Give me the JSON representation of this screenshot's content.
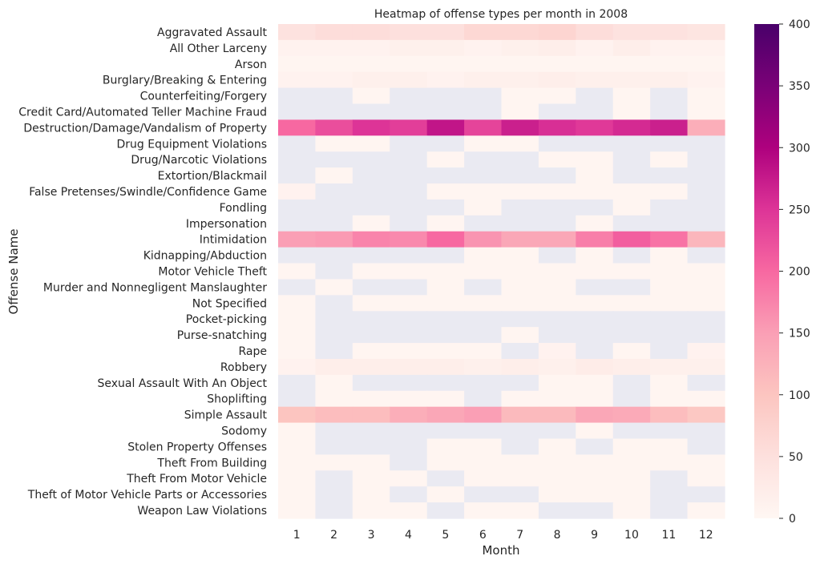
{
  "chart_data": {
    "type": "heatmap",
    "title": "Heatmap of offense types per month in 2008",
    "xlabel": "Month",
    "ylabel": "Offense Name",
    "x_categories": [
      "1",
      "2",
      "3",
      "4",
      "5",
      "6",
      "7",
      "8",
      "9",
      "10",
      "11",
      "12"
    ],
    "y_categories": [
      "Aggravated Assault",
      "All Other Larceny",
      "Arson",
      "Burglary/Breaking & Entering",
      "Counterfeiting/Forgery",
      "Credit Card/Automated Teller Machine Fraud",
      "Destruction/Damage/Vandalism of Property",
      "Drug Equipment Violations",
      "Drug/Narcotic Violations",
      "Extortion/Blackmail",
      "False Pretenses/Swindle/Confidence Game",
      "Fondling",
      "Impersonation",
      "Intimidation",
      "Kidnapping/Abduction",
      "Motor Vehicle Theft",
      "Murder and Nonnegligent Manslaughter",
      "Not Specified",
      "Pocket-picking",
      "Purse-snatching",
      "Rape",
      "Robbery",
      "Sexual Assault With An Object",
      "Shoplifting",
      "Simple Assault",
      "Sodomy",
      "Stolen Property Offenses",
      "Theft From Building",
      "Theft From Motor Vehicle",
      "Theft of Motor Vehicle Parts or Accessories",
      "Weapon Law Violations"
    ],
    "values": [
      [
        45,
        55,
        55,
        50,
        50,
        65,
        65,
        70,
        55,
        45,
        45,
        40
      ],
      [
        10,
        10,
        10,
        15,
        15,
        10,
        15,
        20,
        10,
        20,
        10,
        10
      ],
      [
        5,
        5,
        5,
        5,
        5,
        5,
        5,
        5,
        5,
        5,
        5,
        5
      ],
      [
        10,
        10,
        15,
        15,
        10,
        15,
        15,
        20,
        15,
        15,
        15,
        10
      ],
      [
        null,
        null,
        5,
        null,
        null,
        null,
        5,
        5,
        null,
        5,
        null,
        5
      ],
      [
        null,
        null,
        null,
        null,
        null,
        null,
        5,
        null,
        null,
        5,
        null,
        5
      ],
      [
        200,
        225,
        250,
        240,
        280,
        235,
        270,
        255,
        245,
        260,
        270,
        130
      ],
      [
        null,
        5,
        5,
        null,
        null,
        5,
        5,
        null,
        null,
        null,
        null,
        null
      ],
      [
        null,
        null,
        null,
        null,
        5,
        null,
        null,
        5,
        5,
        null,
        5,
        null
      ],
      [
        null,
        5,
        null,
        null,
        null,
        null,
        null,
        null,
        5,
        null,
        null,
        null
      ],
      [
        10,
        null,
        null,
        null,
        5,
        5,
        5,
        5,
        5,
        5,
        5,
        null
      ],
      [
        null,
        null,
        null,
        null,
        null,
        5,
        null,
        null,
        null,
        5,
        null,
        null
      ],
      [
        null,
        null,
        5,
        null,
        5,
        null,
        null,
        null,
        5,
        null,
        null,
        null
      ],
      [
        150,
        155,
        175,
        170,
        200,
        160,
        140,
        140,
        180,
        210,
        190,
        120
      ],
      [
        null,
        null,
        null,
        null,
        null,
        5,
        5,
        null,
        5,
        null,
        5,
        null
      ],
      [
        5,
        null,
        5,
        5,
        5,
        5,
        5,
        5,
        5,
        5,
        5,
        5
      ],
      [
        null,
        5,
        null,
        null,
        5,
        null,
        5,
        5,
        null,
        null,
        5,
        5
      ],
      [
        5,
        null,
        5,
        5,
        5,
        5,
        5,
        5,
        5,
        5,
        5,
        5
      ],
      [
        5,
        null,
        null,
        null,
        null,
        null,
        null,
        null,
        null,
        null,
        null,
        null
      ],
      [
        5,
        null,
        null,
        null,
        null,
        null,
        5,
        null,
        null,
        null,
        null,
        null
      ],
      [
        5,
        null,
        5,
        5,
        5,
        5,
        null,
        10,
        null,
        5,
        null,
        10
      ],
      [
        10,
        20,
        20,
        20,
        20,
        15,
        20,
        15,
        25,
        20,
        15,
        15
      ],
      [
        null,
        5,
        null,
        null,
        null,
        null,
        null,
        5,
        5,
        null,
        5,
        null
      ],
      [
        null,
        5,
        5,
        5,
        5,
        null,
        5,
        5,
        5,
        null,
        5,
        5
      ],
      [
        100,
        110,
        110,
        130,
        140,
        150,
        115,
        115,
        140,
        135,
        110,
        95
      ],
      [
        5,
        null,
        null,
        null,
        null,
        null,
        null,
        null,
        5,
        null,
        null,
        null
      ],
      [
        5,
        null,
        null,
        null,
        5,
        5,
        null,
        5,
        null,
        5,
        5,
        null
      ],
      [
        5,
        5,
        5,
        null,
        5,
        5,
        5,
        5,
        5,
        5,
        5,
        5
      ],
      [
        5,
        null,
        5,
        5,
        null,
        5,
        5,
        5,
        5,
        5,
        null,
        5
      ],
      [
        5,
        null,
        5,
        null,
        5,
        null,
        null,
        5,
        5,
        5,
        null,
        null
      ],
      [
        5,
        null,
        5,
        5,
        null,
        5,
        5,
        null,
        null,
        5,
        null,
        5
      ]
    ],
    "missing_color": "#eaeaf2",
    "colorbar": {
      "min": 0,
      "max": 400,
      "ticks": [
        0,
        50,
        100,
        150,
        200,
        250,
        300,
        350,
        400
      ],
      "stops": [
        "#fff7f3",
        "#fde0dd",
        "#fcc5c0",
        "#fa9fb5",
        "#f768a1",
        "#dd3497",
        "#ae017e",
        "#7a0177",
        "#49006a"
      ]
    }
  }
}
